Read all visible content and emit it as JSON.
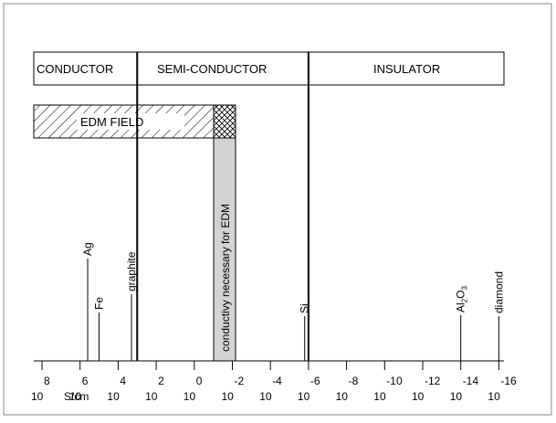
{
  "ranges": {
    "conductor": "CONDUCTOR",
    "semiconductor": "SEMI-CONDUCTOR",
    "insulator": "INSULATOR"
  },
  "edm_field": "EDM FIELD",
  "edm_band": "conductivy necessary for EDM",
  "axis": {
    "unit": "S/cm",
    "base": "10",
    "exponents": [
      "8",
      "6",
      "4",
      "2",
      "0",
      "-2",
      "-4",
      "-6",
      "-8",
      "-10",
      "-12",
      "-14",
      "-16"
    ]
  },
  "materials": [
    {
      "name": "Ag",
      "exp": 5.6
    },
    {
      "name": "Fe",
      "exp": 5.0
    },
    {
      "name": "graphite",
      "exp": 3.3
    },
    {
      "name": "Si",
      "exp": -5.8
    },
    {
      "name": "Al2O3",
      "exp": -14.0
    },
    {
      "name": "diamond",
      "exp": -16.0
    }
  ],
  "boundaries": {
    "conductor_semi": 3,
    "semi_insulator": -6
  },
  "edm_band_range": [
    1,
    -2
  ]
}
